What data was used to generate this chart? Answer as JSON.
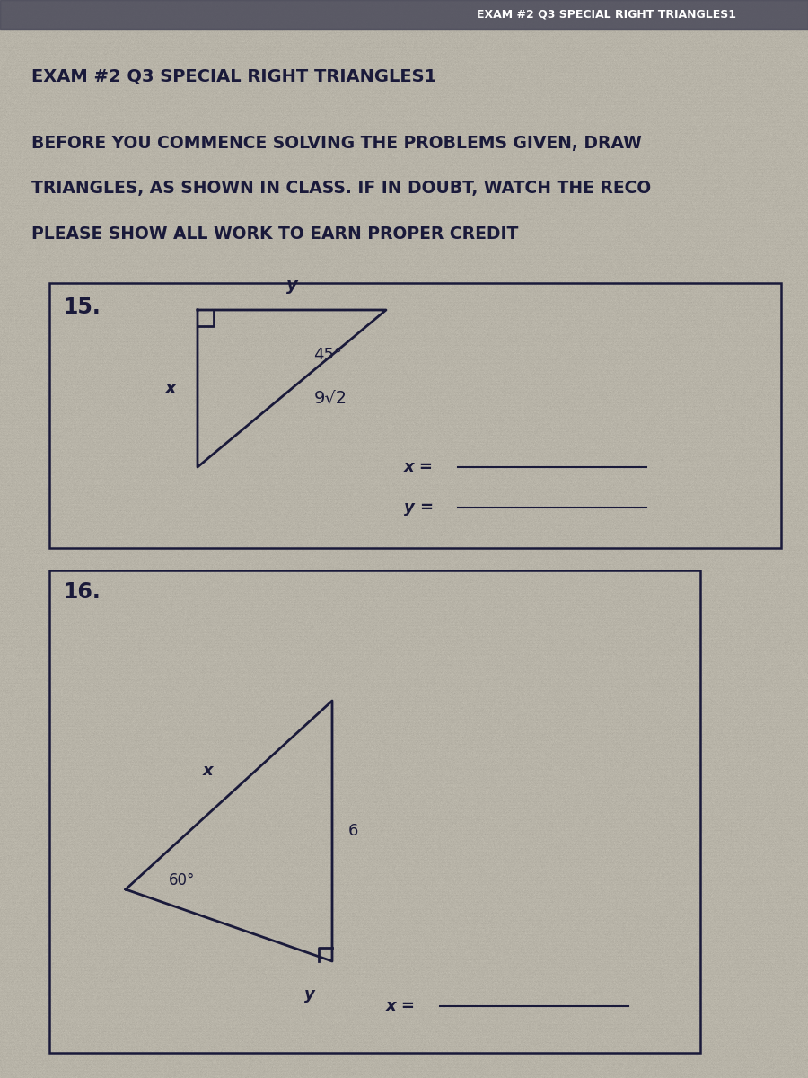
{
  "bg_color": "#b8b4a8",
  "text_color": "#1a1a3a",
  "title_line": "EXAM #2 Q3 SPECIAL RIGHT TRIANGLES1",
  "instructions": [
    "BEFORE YOU COMMENCE SOLVING THE PROBLEMS GIVEN, DRAW",
    "TRIANGLES, AS SHOWN IN CLASS. IF IN DOUBT, WATCH THE RECO",
    "PLEASE SHOW ALL WORK TO EARN PROPER CREDIT"
  ],
  "prob15_num": "15.",
  "prob16_num": "16.",
  "prob15_angle": "45°",
  "prob15_hyp": "9√2",
  "prob15_x_label": "x",
  "prob15_y_label": "y",
  "prob16_angle": "60°",
  "prob16_side": "6",
  "prob16_x_label": "x",
  "prob16_y_label": "y",
  "answer_x": "x =",
  "answer_y": "y =",
  "top_strip_color": "#4a4a5a",
  "top_strip_text": "EXAM #2 Q3 SPECIAL RIGHT TRIANGLES1",
  "noise_alpha": 0.18
}
